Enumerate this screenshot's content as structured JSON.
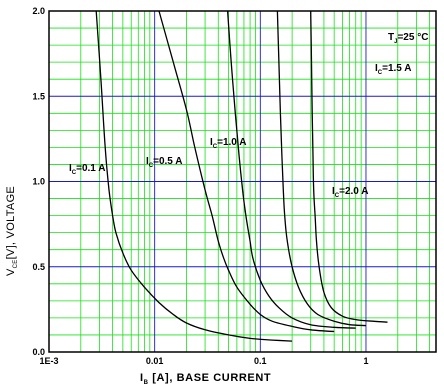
{
  "chart_data": {
    "type": "line",
    "xscale": "log",
    "xlim": [
      0.001,
      4.6
    ],
    "ylim": [
      0,
      2.0
    ],
    "grid": true,
    "xticks": [
      {
        "v": 0.001,
        "label": "1E-3"
      },
      {
        "v": 0.01,
        "label": "0.01"
      },
      {
        "v": 0.1,
        "label": "0.1"
      },
      {
        "v": 1,
        "label": "1"
      }
    ],
    "yticks": [
      {
        "v": 0,
        "label": "0.0"
      },
      {
        "v": 0.5,
        "label": "0.5"
      },
      {
        "v": 1.0,
        "label": "1.0"
      },
      {
        "v": 1.5,
        "label": "1.5"
      },
      {
        "v": 2.0,
        "label": "2.0"
      }
    ],
    "xlabel": {
      "pre": "I",
      "sub": "B",
      "post": " [A], BASE CURRENT"
    },
    "ylabel": {
      "pre": "V",
      "sub": "CE",
      "post": "[V], VOLTAGE"
    },
    "annotation": {
      "pre": "T",
      "sub": "J",
      "post": "=25 °C"
    },
    "colors": {
      "curve": "#000000",
      "major_grid": "#1a1acc",
      "minor_grid": "#18e018"
    },
    "series": [
      {
        "name": {
          "pre": "I",
          "sub": "C",
          "post": "=0.1 A"
        },
        "points": [
          [
            0.0028,
            2.0
          ],
          [
            0.0031,
            1.6
          ],
          [
            0.0034,
            1.2
          ],
          [
            0.0037,
            0.95
          ],
          [
            0.004,
            0.8
          ],
          [
            0.0043,
            0.7
          ],
          [
            0.005,
            0.58
          ],
          [
            0.006,
            0.48
          ],
          [
            0.008,
            0.38
          ],
          [
            0.011,
            0.29
          ],
          [
            0.015,
            0.22
          ],
          [
            0.02,
            0.17
          ],
          [
            0.03,
            0.13
          ],
          [
            0.05,
            0.1
          ],
          [
            0.08,
            0.08
          ],
          [
            0.13,
            0.07
          ],
          [
            0.2,
            0.064
          ]
        ]
      },
      {
        "name": {
          "pre": "I",
          "sub": "C",
          "post": "=0.5 A"
        },
        "points": [
          [
            0.011,
            2.0
          ],
          [
            0.015,
            1.7
          ],
          [
            0.02,
            1.42
          ],
          [
            0.024,
            1.2
          ],
          [
            0.03,
            0.95
          ],
          [
            0.035,
            0.8
          ],
          [
            0.04,
            0.65
          ],
          [
            0.045,
            0.55
          ],
          [
            0.05,
            0.48
          ],
          [
            0.06,
            0.38
          ],
          [
            0.08,
            0.28
          ],
          [
            0.1,
            0.22
          ],
          [
            0.13,
            0.18
          ],
          [
            0.2,
            0.15
          ],
          [
            0.3,
            0.13
          ],
          [
            0.5,
            0.12
          ]
        ]
      },
      {
        "name": {
          "pre": "I",
          "sub": "C",
          "post": "=1.0 A"
        },
        "points": [
          [
            0.049,
            2.0
          ],
          [
            0.053,
            1.7
          ],
          [
            0.058,
            1.4
          ],
          [
            0.063,
            1.15
          ],
          [
            0.068,
            0.95
          ],
          [
            0.073,
            0.8
          ],
          [
            0.08,
            0.65
          ],
          [
            0.085,
            0.55
          ],
          [
            0.1,
            0.42
          ],
          [
            0.12,
            0.33
          ],
          [
            0.15,
            0.26
          ],
          [
            0.2,
            0.2
          ],
          [
            0.3,
            0.16
          ],
          [
            0.5,
            0.145
          ],
          [
            0.8,
            0.14
          ]
        ]
      },
      {
        "name": {
          "pre": "I",
          "sub": "C",
          "post": "=1.5 A"
        },
        "points": [
          [
            0.145,
            2.0
          ],
          [
            0.15,
            1.7
          ],
          [
            0.155,
            1.4
          ],
          [
            0.16,
            1.15
          ],
          [
            0.165,
            0.95
          ],
          [
            0.17,
            0.8
          ],
          [
            0.18,
            0.65
          ],
          [
            0.2,
            0.5
          ],
          [
            0.23,
            0.38
          ],
          [
            0.28,
            0.28
          ],
          [
            0.35,
            0.22
          ],
          [
            0.5,
            0.18
          ],
          [
            0.7,
            0.16
          ],
          [
            1.0,
            0.155
          ]
        ]
      },
      {
        "name": {
          "pre": "I",
          "sub": "C",
          "post": "=2.0 A"
        },
        "points": [
          [
            0.3,
            2.0
          ],
          [
            0.305,
            1.7
          ],
          [
            0.31,
            1.4
          ],
          [
            0.315,
            1.15
          ],
          [
            0.32,
            0.95
          ],
          [
            0.33,
            0.8
          ],
          [
            0.34,
            0.65
          ],
          [
            0.36,
            0.5
          ],
          [
            0.4,
            0.35
          ],
          [
            0.47,
            0.26
          ],
          [
            0.6,
            0.21
          ],
          [
            0.8,
            0.19
          ],
          [
            1.2,
            0.18
          ],
          [
            1.6,
            0.175
          ]
        ]
      }
    ]
  }
}
